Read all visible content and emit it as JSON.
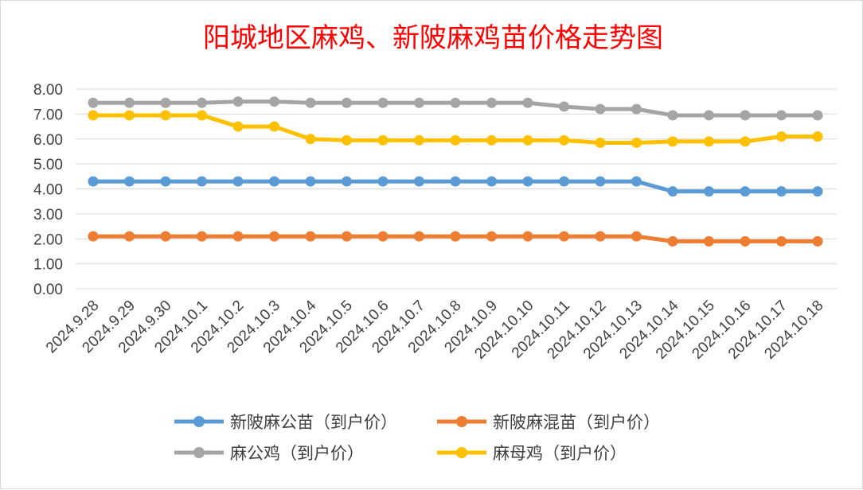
{
  "chart_data": {
    "type": "line",
    "title": "阳城地区麻鸡、新陂麻鸡苗价格走势图",
    "xlabel": "",
    "ylabel": "",
    "ylim": [
      0,
      8
    ],
    "yticks": [
      "0.00",
      "1.00",
      "2.00",
      "3.00",
      "4.00",
      "5.00",
      "6.00",
      "7.00",
      "8.00"
    ],
    "grid": true,
    "legend_position": "bottom",
    "categories": [
      "2024.9.28",
      "2024.9.29",
      "2024.9.30",
      "2024.10.1",
      "2024.10.2",
      "2024.10.3",
      "2024.10.4",
      "2024.10.5",
      "2024.10.6",
      "2024.10.7",
      "2024.10.8",
      "2024.10.9",
      "2024.10.10",
      "2024.10.11",
      "2024.10.12",
      "2024.10.13",
      "2024.10.14",
      "2024.10.15",
      "2024.10.16",
      "2024.10.17",
      "2024.10.18"
    ],
    "series": [
      {
        "name": "新陂麻公苗（到户价）",
        "color": "#5b9bd5",
        "values": [
          4.3,
          4.3,
          4.3,
          4.3,
          4.3,
          4.3,
          4.3,
          4.3,
          4.3,
          4.3,
          4.3,
          4.3,
          4.3,
          4.3,
          4.3,
          4.3,
          3.9,
          3.9,
          3.9,
          3.9,
          3.9
        ]
      },
      {
        "name": "新陂麻混苗（到户价）",
        "color": "#ed7d31",
        "values": [
          2.1,
          2.1,
          2.1,
          2.1,
          2.1,
          2.1,
          2.1,
          2.1,
          2.1,
          2.1,
          2.1,
          2.1,
          2.1,
          2.1,
          2.1,
          2.1,
          1.9,
          1.9,
          1.9,
          1.9,
          1.9
        ]
      },
      {
        "name": "麻公鸡（到户价）",
        "color": "#a5a5a5",
        "values": [
          7.45,
          7.45,
          7.45,
          7.45,
          7.5,
          7.5,
          7.45,
          7.45,
          7.45,
          7.45,
          7.45,
          7.45,
          7.45,
          7.3,
          7.2,
          7.2,
          6.95,
          6.95,
          6.95,
          6.95,
          6.95
        ]
      },
      {
        "name": "麻母鸡（到户价）",
        "color": "#ffc000",
        "values": [
          6.95,
          6.95,
          6.95,
          6.95,
          6.5,
          6.5,
          6.0,
          5.95,
          5.95,
          5.95,
          5.95,
          5.95,
          5.95,
          5.95,
          5.85,
          5.85,
          5.9,
          5.9,
          5.9,
          6.1,
          6.1
        ]
      }
    ]
  }
}
